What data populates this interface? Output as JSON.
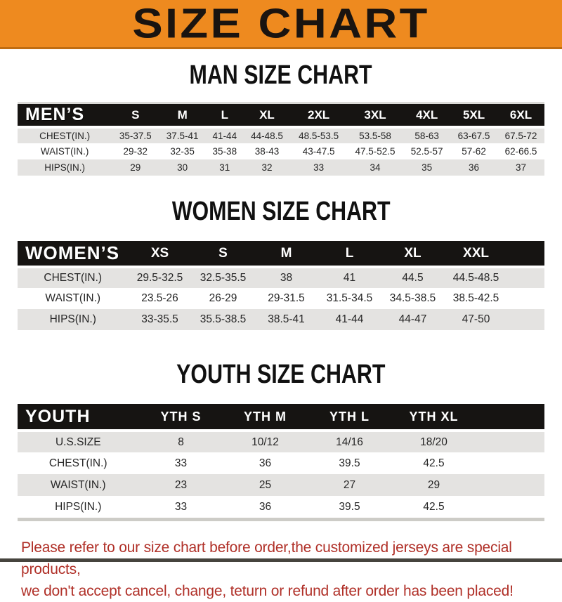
{
  "banner": {
    "title": "SIZE CHART"
  },
  "sections": [
    {
      "heading": "MAN SIZE CHART",
      "header_label": "MEN’S",
      "columns": [
        "S",
        "M",
        "L",
        "XL",
        "2XL",
        "3XL",
        "4XL",
        "5XL",
        "6XL"
      ],
      "rows": [
        {
          "label": "CHEST(IN.)",
          "values": [
            "35-37.5",
            "37.5-41",
            "41-44",
            "44-48.5",
            "48.5-53.5",
            "53.5-58",
            "58-63",
            "63-67.5",
            "67.5-72"
          ]
        },
        {
          "label": "WAIST(IN.)",
          "values": [
            "29-32",
            "32-35",
            "35-38",
            "38-43",
            "43-47.5",
            "47.5-52.5",
            "52.5-57",
            "57-62",
            "62-66.5"
          ]
        },
        {
          "label": "HIPS(IN.)",
          "values": [
            "29",
            "30",
            "31",
            "32",
            "33",
            "34",
            "35",
            "36",
            "37"
          ]
        }
      ],
      "trailing_spacer": false,
      "bottom_strip": false
    },
    {
      "heading": "WOMEN SIZE CHART",
      "header_label": "WOMEN’S",
      "columns": [
        "XS",
        "S",
        "M",
        "L",
        "XL",
        "XXL"
      ],
      "rows": [
        {
          "label": "CHEST(IN.)",
          "values": [
            "29.5-32.5",
            "32.5-35.5",
            "38",
            "41",
            "44.5",
            "44.5-48.5"
          ]
        },
        {
          "label": "WAIST(IN.)",
          "values": [
            "23.5-26",
            "26-29",
            "29-31.5",
            "31.5-34.5",
            "34.5-38.5",
            "38.5-42.5"
          ]
        },
        {
          "label": "HIPS(IN.)",
          "values": [
            "33-35.5",
            "35.5-38.5",
            "38.5-41",
            "41-44",
            "44-47",
            "47-50"
          ]
        }
      ],
      "trailing_spacer": true,
      "bottom_strip": false
    },
    {
      "heading": "YOUTH SIZE CHART",
      "header_label": "YOUTH",
      "columns": [
        "YTH S",
        "YTH M",
        "YTH L",
        "YTH XL"
      ],
      "rows": [
        {
          "label": "U.S.SIZE",
          "values": [
            "8",
            "10/12",
            "14/16",
            "18/20"
          ]
        },
        {
          "label": "CHEST(IN.)",
          "values": [
            "33",
            "36",
            "39.5",
            "42.5"
          ]
        },
        {
          "label": "WAIST(IN.)",
          "values": [
            "23",
            "25",
            "27",
            "29"
          ]
        },
        {
          "label": "HIPS(IN.)",
          "values": [
            "33",
            "36",
            "39.5",
            "42.5"
          ]
        }
      ],
      "trailing_spacer": true,
      "bottom_strip": true
    }
  ],
  "footer": {
    "line1": "Please refer to our size chart before order,the customized jerseys are special products,",
    "line2": "we don't accept cancel, change, teturn or refund after order has been placed!"
  },
  "colors": {
    "banner_bg": "#ee8a1f",
    "banner_text": "#1a1410",
    "table_bar_bg": "#161412",
    "table_bar_text": "#ffffff",
    "row_alt_gray": "#e4e3e1",
    "row_white": "#ffffff",
    "body_text": "#262626",
    "footer_red": "#b03028",
    "bottom_edge": "#46443e"
  }
}
